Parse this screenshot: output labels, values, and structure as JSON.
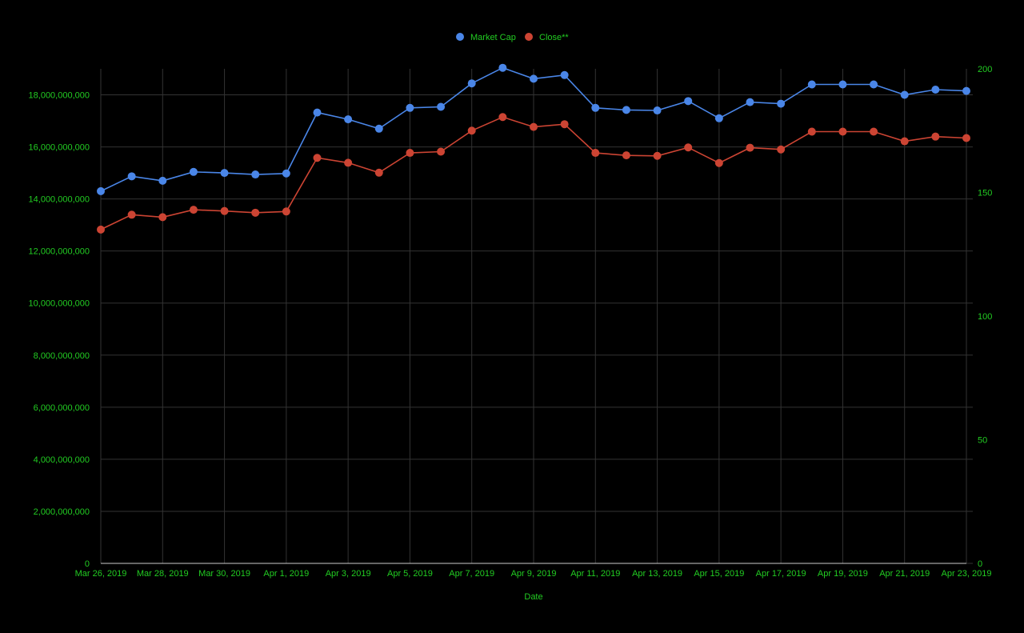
{
  "chart_data": {
    "type": "line",
    "title": "",
    "xlabel": "Date",
    "ylabel_left": "",
    "ylabel_right": "",
    "x": [
      "Mar 26, 2019",
      "Mar 27, 2019",
      "Mar 28, 2019",
      "Mar 29, 2019",
      "Mar 30, 2019",
      "Mar 31, 2019",
      "Apr 1, 2019",
      "Apr 2, 2019",
      "Apr 3, 2019",
      "Apr 4, 2019",
      "Apr 5, 2019",
      "Apr 6, 2019",
      "Apr 7, 2019",
      "Apr 8, 2019",
      "Apr 9, 2019",
      "Apr 10, 2019",
      "Apr 11, 2019",
      "Apr 12, 2019",
      "Apr 13, 2019",
      "Apr 14, 2019",
      "Apr 15, 2019",
      "Apr 16, 2019",
      "Apr 17, 2019",
      "Apr 18, 2019",
      "Apr 19, 2019",
      "Apr 20, 2019",
      "Apr 21, 2019",
      "Apr 22, 2019",
      "Apr 23, 2019"
    ],
    "x_tick_labels": [
      "Mar 26, 2019",
      "Mar 28, 2019",
      "Mar 30, 2019",
      "Apr 1, 2019",
      "Apr 3, 2019",
      "Apr 5, 2019",
      "Apr 7, 2019",
      "Apr 9, 2019",
      "Apr 11, 2019",
      "Apr 13, 2019",
      "Apr 15, 2019",
      "Apr 17, 2019",
      "Apr 19, 2019",
      "Apr 21, 2019",
      "Apr 23, 2019"
    ],
    "series": [
      {
        "name": "Market Cap",
        "axis": "left",
        "color": "#4a86e8",
        "values": [
          14300000000,
          14870000000,
          14700000000,
          15040000000,
          15000000000,
          14940000000,
          14980000000,
          17320000000,
          17060000000,
          16700000000,
          17500000000,
          17540000000,
          18440000000,
          19040000000,
          18620000000,
          18760000000,
          17500000000,
          17420000000,
          17400000000,
          17760000000,
          17100000000,
          17720000000,
          17660000000,
          18400000000,
          18400000000,
          18400000000,
          18000000000,
          18200000000,
          18150000000
        ]
      },
      {
        "name": "Close**",
        "axis": "right",
        "color": "#cc4433",
        "values": [
          135,
          141,
          140,
          143,
          142.5,
          141.8,
          142.3,
          164,
          162,
          158,
          166,
          166.5,
          175,
          180.5,
          176.5,
          177.6,
          166,
          165,
          164.8,
          168.2,
          161.9,
          168.1,
          167.4,
          174.6,
          174.6,
          174.6,
          170.7,
          172.6,
          172
        ]
      }
    ],
    "y_left": {
      "min": 0,
      "max": 19000000000,
      "ticks": [
        0,
        2000000000,
        4000000000,
        6000000000,
        8000000000,
        10000000000,
        12000000000,
        14000000000,
        16000000000,
        18000000000
      ],
      "tick_labels": [
        "0",
        "2,000,000,000",
        "4,000,000,000",
        "6,000,000,000",
        "8,000,000,000",
        "10,000,000,000",
        "12,000,000,000",
        "14,000,000,000",
        "16,000,000,000",
        "18,000,000,000"
      ]
    },
    "y_right": {
      "min": 0,
      "max": 200,
      "ticks": [
        0,
        50,
        100,
        150,
        200
      ],
      "tick_labels": [
        "0",
        "50",
        "100",
        "150",
        "200"
      ]
    },
    "grid": true,
    "legend_position": "top-center",
    "colors": {
      "background": "#000000",
      "text": "#22cc22",
      "grid": "#333333"
    }
  }
}
